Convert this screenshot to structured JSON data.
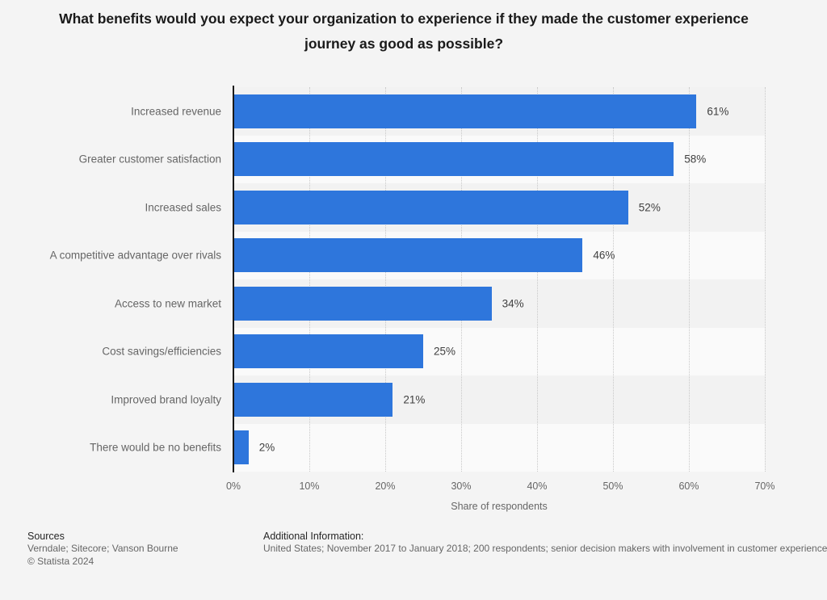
{
  "title": "What benefits would you expect your organization to experience if they made the customer experience journey as good as possible?",
  "chart_data": {
    "type": "bar",
    "orientation": "horizontal",
    "categories": [
      "Increased revenue",
      "Greater customer satisfaction",
      "Increased sales",
      "A competitive advantage over rivals",
      "Access to new market",
      "Cost savings/efficiencies",
      "Improved brand loyalty",
      "There would be no benefits"
    ],
    "values": [
      61,
      58,
      52,
      46,
      34,
      25,
      21,
      2
    ],
    "value_labels": [
      "61%",
      "58%",
      "52%",
      "46%",
      "34%",
      "25%",
      "21%",
      "2%"
    ],
    "xlabel": "Share of respondents",
    "x_ticks": [
      "0%",
      "10%",
      "20%",
      "30%",
      "40%",
      "50%",
      "60%",
      "70%"
    ],
    "xlim": [
      0,
      70
    ],
    "grid": "vertical-dotted",
    "legend": "none",
    "bar_color": "#2e76dc",
    "row_stripe_colors": [
      "#f2f2f2",
      "#fafafa"
    ],
    "gridline_color": "#c8c8c8",
    "axis_line_color": "#1a1a1a"
  },
  "footer": {
    "sources_heading": "Sources",
    "sources_line": "Verndale; Sitecore; Vanson Bourne",
    "copyright": "© Statista 2024",
    "additional_heading": "Additional Information:",
    "additional_text": "United States; November 2017 to January 2018; 200 respondents; senior decision makers with involvement in customer experience"
  }
}
